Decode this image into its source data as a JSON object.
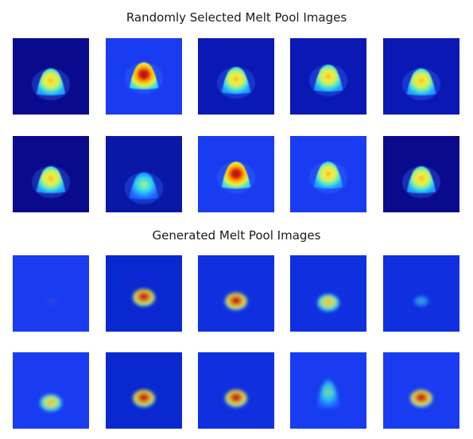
{
  "figure": {
    "sections": [
      {
        "title": "Randomly Selected Melt Pool Images",
        "images": [
          {
            "background": "#0a0a8c",
            "style": "real",
            "peak": "yellow",
            "offset_y": 0.0
          },
          {
            "background": "#1a3cf0",
            "style": "real",
            "peak": "red",
            "offset_y": -0.08
          },
          {
            "background": "#0a18b4",
            "style": "real",
            "peak": "yellow",
            "offset_y": -0.02
          },
          {
            "background": "#0a18b4",
            "style": "real",
            "peak": "yellow",
            "offset_y": -0.05
          },
          {
            "background": "#0a18b4",
            "style": "real",
            "peak": "yellow",
            "offset_y": 0.0
          },
          {
            "background": "#0a0a8c",
            "style": "real",
            "peak": "yellow",
            "offset_y": 0.0
          },
          {
            "background": "#0a18a8",
            "style": "real",
            "peak": "cyan",
            "offset_y": 0.08
          },
          {
            "background": "#1a3cf0",
            "style": "real",
            "peak": "red",
            "offset_y": -0.06
          },
          {
            "background": "#1a3cf0",
            "style": "real",
            "peak": "yellow",
            "offset_y": -0.06
          },
          {
            "background": "#0a0a8c",
            "style": "real",
            "peak": "yellow",
            "offset_y": 0.0
          }
        ]
      },
      {
        "title": "Generated Melt Pool Images",
        "images": [
          {
            "background": "#1a3cf0",
            "style": "gen-faint",
            "peak": "blue",
            "offset_y": 0.0
          },
          {
            "background": "#0a28d0",
            "style": "gen",
            "peak": "red",
            "offset_y": -0.05
          },
          {
            "background": "#1030e0",
            "style": "gen",
            "peak": "red",
            "offset_y": 0.0
          },
          {
            "background": "#1030e0",
            "style": "gen",
            "peak": "yellow",
            "offset_y": 0.02
          },
          {
            "background": "#1030e0",
            "style": "gen-faint",
            "peak": "cyan",
            "offset_y": 0.0
          },
          {
            "background": "#1a3cf0",
            "style": "gen",
            "peak": "yellow",
            "offset_y": 0.06
          },
          {
            "background": "#0a28d0",
            "style": "gen",
            "peak": "red",
            "offset_y": 0.0
          },
          {
            "background": "#1030e0",
            "style": "gen",
            "peak": "red",
            "offset_y": 0.0
          },
          {
            "background": "#1a3cf0",
            "style": "gen-tall",
            "peak": "cyan",
            "offset_y": 0.0
          },
          {
            "background": "#1a3cf0",
            "style": "gen",
            "peak": "red",
            "offset_y": 0.0
          }
        ]
      }
    ]
  }
}
